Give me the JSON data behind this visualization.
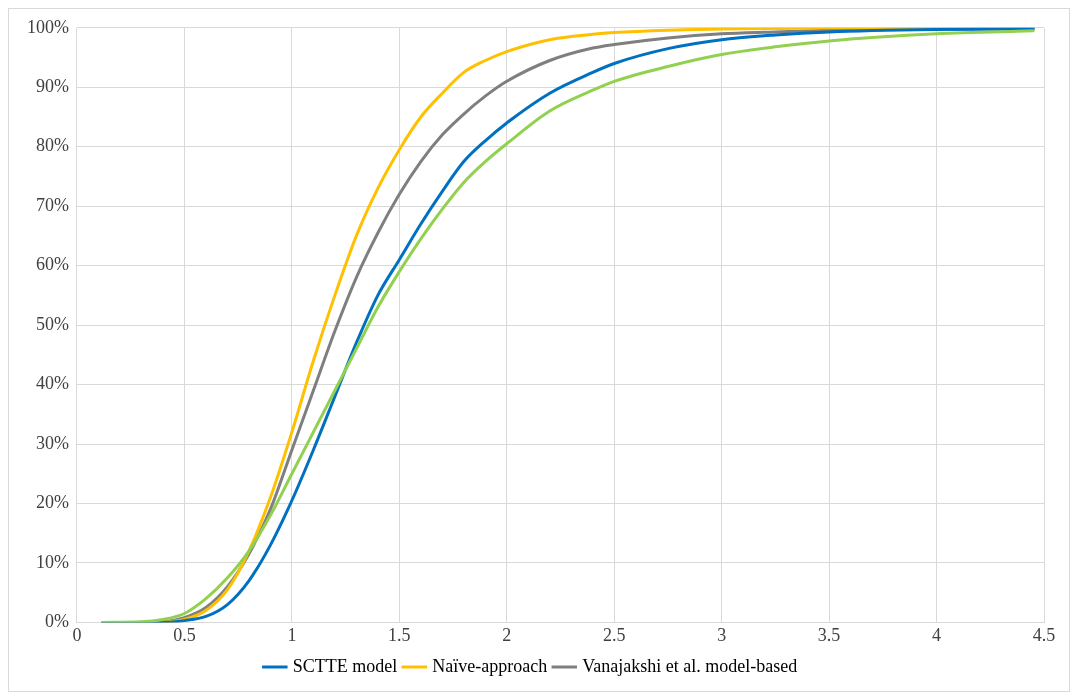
{
  "chart_data": {
    "type": "line",
    "xlim": [
      0,
      4.5
    ],
    "xticks": [
      0,
      0.5,
      1,
      1.5,
      2,
      2.5,
      3,
      3.5,
      4,
      4.5
    ],
    "ylim": [
      0,
      100
    ],
    "yticks": [
      {
        "value": 0,
        "label": "0%"
      },
      {
        "value": 10,
        "label": "10%"
      },
      {
        "value": 20,
        "label": "20%"
      },
      {
        "value": 30,
        "label": "30%"
      },
      {
        "value": 40,
        "label": "40%"
      },
      {
        "value": 50,
        "label": "50%"
      },
      {
        "value": 60,
        "label": "60%"
      },
      {
        "value": 70,
        "label": "70%"
      },
      {
        "value": 80,
        "label": "80%"
      },
      {
        "value": 90,
        "label": "90%"
      },
      {
        "value": 100,
        "label": "100%"
      }
    ],
    "grid": true,
    "legend": "bottom",
    "marker": "none",
    "line_style": "solid",
    "x": [
      0.12,
      0.3,
      0.4,
      0.5,
      0.6,
      0.7,
      0.8,
      0.9,
      1.0,
      1.1,
      1.2,
      1.3,
      1.4,
      1.5,
      1.6,
      1.7,
      1.8,
      1.9,
      2.0,
      2.2,
      2.4,
      2.5,
      2.75,
      3.0,
      3.25,
      3.5,
      4.0,
      4.45
    ],
    "series": [
      {
        "color": "#92d050",
        "values": [
          0,
          0.1,
          0.5,
          1.5,
          4,
          7.5,
          12,
          18,
          25,
          32,
          39,
          46,
          53,
          59,
          64.5,
          69.5,
          74,
          77.5,
          80.5,
          86,
          89.5,
          91,
          93.5,
          95.5,
          96.8,
          97.8,
          99,
          99.5
        ]
      },
      {
        "name": "SCTTE model",
        "color": "#0070c0",
        "values": [
          0,
          0,
          0,
          0.3,
          1,
          3,
          7,
          13,
          20.5,
          29,
          38,
          47,
          55,
          61,
          67,
          72.5,
          77.5,
          81,
          84,
          89,
          92.5,
          94,
          96.5,
          98,
          98.8,
          99.3,
          99.7,
          99.8
        ]
      },
      {
        "name": "Naïve-approach",
        "color": "#ffc000",
        "values": [
          null,
          null,
          0,
          0.5,
          2,
          5.5,
          12,
          21,
          32,
          44,
          55,
          65,
          73,
          79.5,
          85,
          89,
          92.5,
          94.5,
          96,
          98,
          98.9,
          99.2,
          99.6,
          99.8,
          99.9,
          100,
          100,
          100
        ]
      },
      {
        "name": "Vanajakshi et al. model-based",
        "color": "#7f7f7f",
        "values": [
          0,
          0,
          0.1,
          0.8,
          2.5,
          6,
          11.5,
          19,
          29,
          39,
          49,
          58,
          65.5,
          72,
          77.5,
          82,
          85.5,
          88.5,
          91,
          94.5,
          96.6,
          97.2,
          98.3,
          99,
          99.3,
          99.6,
          99.8,
          99.9
        ]
      }
    ]
  }
}
